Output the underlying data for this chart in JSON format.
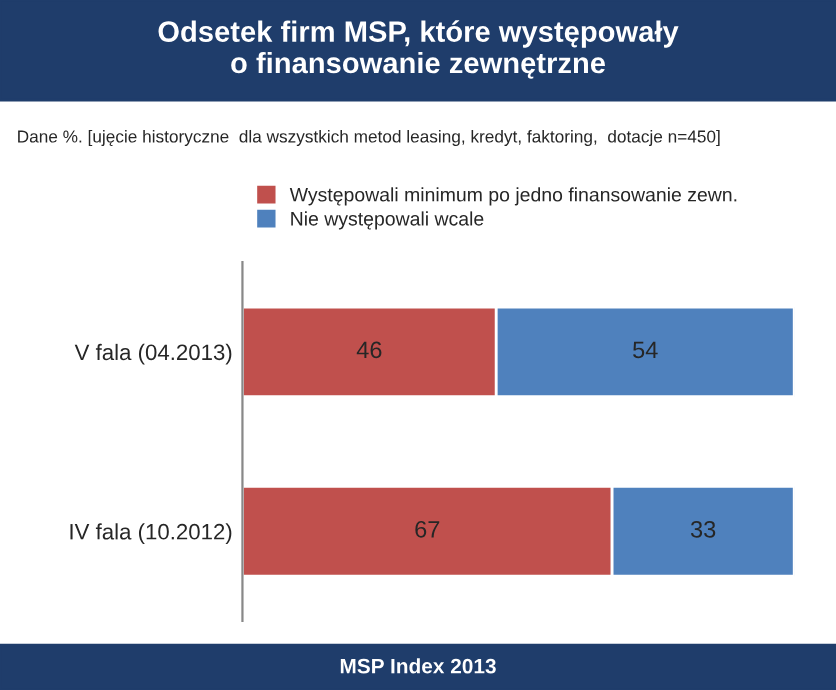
{
  "chart_data": {
    "type": "bar",
    "orientation": "horizontal",
    "stacked": true,
    "title": "Odsetek firm MSP, które występowały\no finansowanie zewnętrzne",
    "subtitle": "Dane %. [ujęcie historyczne  dla wszystkich metod leasing, kredyt, faktoring,  dotacje n=450]",
    "categories": [
      "V fala (04.2013)",
      "IV fala (10.2012)"
    ],
    "series": [
      {
        "name": "Występowali minimum po jedno finansowanie zewn.",
        "color": "#c0504d",
        "values": [
          46,
          67
        ]
      },
      {
        "name": "Nie występowali wcale",
        "color": "#4f81bd",
        "values": [
          54,
          33
        ]
      }
    ],
    "data_labels": true,
    "legend": "top",
    "grid": false,
    "annotations": [
      "MSP Index 2013"
    ]
  }
}
